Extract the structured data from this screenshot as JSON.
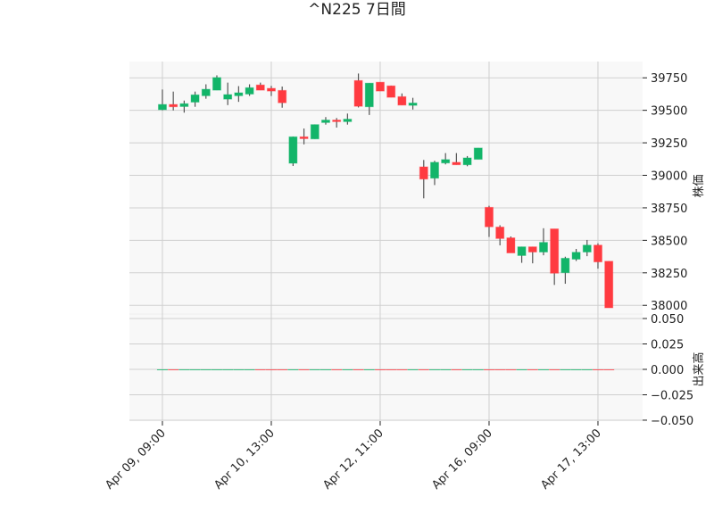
{
  "chart_data": {
    "type": "candlestick",
    "title": "^N225 7日間",
    "ylabel_price": "株価",
    "ylabel_volume": "出来高",
    "colors": {
      "up": "#12b569",
      "down": "#ff3a40",
      "wick": "#555555",
      "grid": "#cfcfcf",
      "plot_bg": "#f8f8f8"
    },
    "price_ylim": [
      37933,
      39875
    ],
    "price_ticks": [
      38000,
      38250,
      38500,
      38750,
      39000,
      39250,
      39500,
      39750
    ],
    "volume_ylim": [
      -0.0509,
      0.0544
    ],
    "volume_ticks": [
      "0.050",
      "0.025",
      "0.000",
      "−0.025",
      "−0.050"
    ],
    "volume_tick_values": [
      0.05,
      0.025,
      0,
      -0.025,
      -0.05
    ],
    "x_ticks": [
      {
        "index": 0,
        "label": "Apr 09, 09:00"
      },
      {
        "index": 10,
        "label": "Apr 10, 13:00"
      },
      {
        "index": 20,
        "label": "Apr 12, 11:00"
      },
      {
        "index": 30,
        "label": "Apr 16, 09:00"
      },
      {
        "index": 40,
        "label": "Apr 17, 13:00"
      }
    ],
    "x_range": [
      -3.03,
      44.1
    ],
    "grid": true,
    "ohlc": [
      [
        39505,
        39660,
        39500,
        39545
      ],
      [
        39545,
        39644,
        39499,
        39527
      ],
      [
        39529,
        39575,
        39482,
        39551
      ],
      [
        39563,
        39644,
        39527,
        39619
      ],
      [
        39612,
        39700,
        39589,
        39662
      ],
      [
        39655,
        39769,
        39655,
        39752
      ],
      [
        39586,
        39713,
        39540,
        39621
      ],
      [
        39612,
        39686,
        39565,
        39635
      ],
      [
        39625,
        39700,
        39611,
        39674
      ],
      [
        39695,
        39713,
        39655,
        39655
      ],
      [
        39669,
        39688,
        39610,
        39648
      ],
      [
        39653,
        39683,
        39520,
        39558
      ],
      [
        39093,
        39298,
        39072,
        39296
      ],
      [
        39296,
        39360,
        39238,
        39282
      ],
      [
        39280,
        39390,
        39280,
        39390
      ],
      [
        39406,
        39448,
        39390,
        39425
      ],
      [
        39425,
        39441,
        39367,
        39413
      ],
      [
        39413,
        39475,
        39390,
        39432
      ],
      [
        39729,
        39783,
        39522,
        39531
      ],
      [
        39527,
        39709,
        39464,
        39709
      ],
      [
        39716,
        39716,
        39648,
        39648
      ],
      [
        39688,
        39690,
        39600,
        39600
      ],
      [
        39605,
        39630,
        39540,
        39540
      ],
      [
        39538,
        39596,
        39506,
        39556
      ],
      [
        39065,
        39118,
        38823,
        38971
      ],
      [
        38978,
        39112,
        38925,
        39100
      ],
      [
        39095,
        39171,
        39084,
        39121
      ],
      [
        39100,
        39171,
        39081,
        39081
      ],
      [
        39081,
        39148,
        39070,
        39134
      ],
      [
        39123,
        39210,
        39123,
        39210
      ],
      [
        38754,
        38766,
        38526,
        38604
      ],
      [
        38602,
        38616,
        38461,
        38514
      ],
      [
        38519,
        38530,
        38403,
        38403
      ],
      [
        38383,
        38450,
        38327,
        38450
      ],
      [
        38450,
        38450,
        38323,
        38410
      ],
      [
        38410,
        38593,
        38385,
        38484
      ],
      [
        38588,
        38588,
        38157,
        38247
      ],
      [
        38251,
        38374,
        38166,
        38362
      ],
      [
        38355,
        38434,
        38341,
        38408
      ],
      [
        38410,
        38503,
        38378,
        38463
      ],
      [
        38463,
        38477,
        38282,
        38334
      ],
      [
        38339,
        38339,
        37981,
        37981
      ]
    ],
    "volume": [
      0,
      0,
      0,
      0,
      0,
      0,
      0,
      0,
      0,
      0,
      0,
      0,
      0,
      0,
      0,
      0,
      0,
      0,
      0,
      0,
      0,
      0,
      0,
      0,
      0,
      0,
      0,
      0,
      0,
      0,
      0,
      0,
      0,
      0,
      0,
      0,
      0,
      0,
      0,
      0,
      0,
      0
    ]
  }
}
